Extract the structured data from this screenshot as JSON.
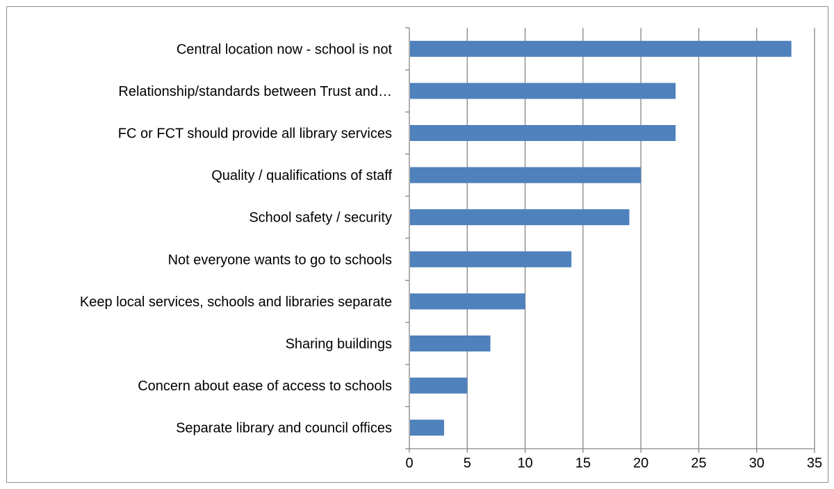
{
  "chart_data": {
    "type": "bar",
    "orientation": "horizontal",
    "title": "",
    "xlabel": "",
    "ylabel": "",
    "categories": [
      "Central location now - school is not",
      "Relationship/standards between Trust and…",
      "FC or FCT should provide all library services",
      "Quality / qualifications of staff",
      "School safety / security",
      "Not everyone wants to go to schools",
      "Keep local services, schools and libraries separate",
      "Sharing buildings",
      "Concern about ease of access to schools",
      "Separate library and council offices"
    ],
    "values": [
      33,
      23,
      23,
      20,
      19,
      14,
      10,
      7,
      5,
      3
    ],
    "xlim": [
      0,
      35
    ],
    "xticks": [
      "0",
      "5",
      "10",
      "15",
      "20",
      "25",
      "30",
      "35"
    ],
    "grid": true,
    "legend": "none",
    "colors": {
      "bar": "#4f81bd",
      "grid": "#868686",
      "axis": "#868686",
      "border": "#8c8c8c"
    }
  }
}
